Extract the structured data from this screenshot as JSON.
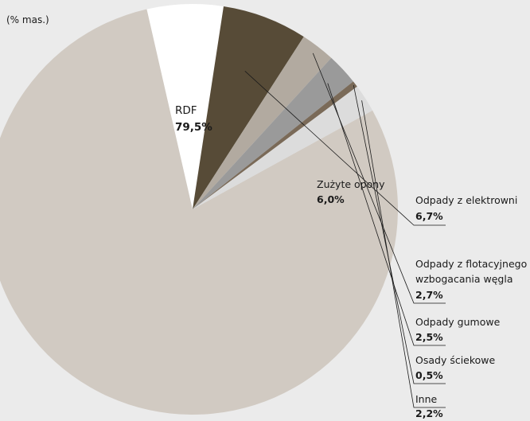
{
  "chart_data": {
    "type": "pie",
    "unit_label": "(% mas.)",
    "slices": [
      {
        "name": "RDF",
        "value": 79.5,
        "label": "79,5%",
        "color": "#d1cac2"
      },
      {
        "name": "Zużyte opony",
        "value": 6.0,
        "label": "6,0%",
        "color": "#ffffff"
      },
      {
        "name": "Odpady z elektrowni",
        "value": 6.7,
        "label": "6,7%",
        "color": "#574b37"
      },
      {
        "name": "Odpady z flotacyjnego wzbogacania węgla",
        "name_lines": [
          "Odpady z flotacyjnego",
          "wzbogacania węgla"
        ],
        "value": 2.7,
        "label": "2,7%",
        "color": "#b2aaa0"
      },
      {
        "name": "Odpady gumowe",
        "value": 2.5,
        "label": "2,5%",
        "color": "#9a9a9a"
      },
      {
        "name": "Osady ściekowe",
        "value": 0.5,
        "label": "0,5%",
        "color": "#7a6a58"
      },
      {
        "name": "Inne",
        "value": 2.2,
        "label": "2,2%",
        "color": "#dcdcdc"
      }
    ]
  }
}
